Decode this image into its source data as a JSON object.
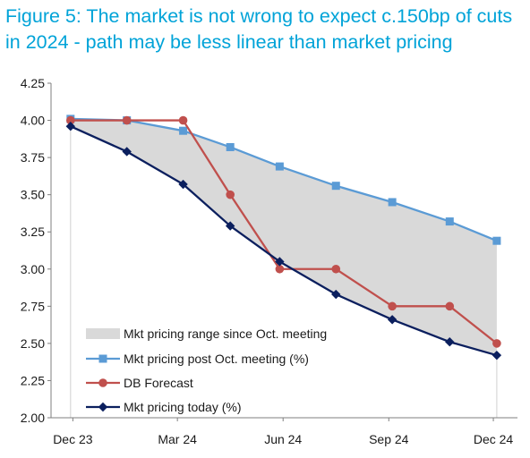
{
  "title": "Figure 5: The market is not wrong to expect c.150bp of cuts in 2024 - path may be less linear than market pricing",
  "colors": {
    "range_fill": "#d9d9d9",
    "post_oct": "#5b9bd5",
    "db_forecast": "#c0504d",
    "today": "#0b1f5e",
    "axis": "#7f7f7f"
  },
  "chart_data": {
    "type": "line",
    "title": "Figure 5: The market is not wrong to expect c.150bp of cuts in 2024 - path may be less linear than market pricing",
    "xlabel": "",
    "ylabel": "",
    "x_ticks": [
      "Dec 23",
      "Mar 24",
      "Jun 24",
      "Sep 24",
      "Dec 24"
    ],
    "ylim": [
      2.0,
      4.25
    ],
    "y_ticks": [
      "4.25",
      "4.00",
      "3.75",
      "3.50",
      "3.25",
      "3.00",
      "2.75",
      "2.50",
      "2.25",
      "2.00"
    ],
    "grid": false,
    "legend_position": "bottom-left",
    "series": [
      {
        "name": "Mkt pricing range since Oct. meeting",
        "kind": "area",
        "x": [
          "2023-12-13",
          "2024-01-31",
          "2024-03-20",
          "2024-04-30",
          "2024-06-12",
          "2024-07-31",
          "2024-09-18",
          "2024-11-07",
          "2024-12-18"
        ],
        "low": [
          3.96,
          3.79,
          3.57,
          3.29,
          3.05,
          2.83,
          2.66,
          2.51,
          2.42
        ],
        "high": [
          4.01,
          4.0,
          3.93,
          3.82,
          3.69,
          3.56,
          3.45,
          3.32,
          3.19
        ]
      },
      {
        "name": "Mkt pricing post Oct. meeting (%)",
        "kind": "line",
        "marker": "square",
        "x": [
          "2023-12-13",
          "2024-01-31",
          "2024-03-20",
          "2024-04-30",
          "2024-06-12",
          "2024-07-31",
          "2024-09-18",
          "2024-11-07",
          "2024-12-18"
        ],
        "values": [
          4.01,
          4.0,
          3.93,
          3.82,
          3.69,
          3.56,
          3.45,
          3.32,
          3.19
        ]
      },
      {
        "name": "DB Forecast",
        "kind": "line",
        "marker": "circle",
        "x": [
          "2023-12-13",
          "2024-01-31",
          "2024-03-20",
          "2024-04-30",
          "2024-06-12",
          "2024-07-31",
          "2024-09-18",
          "2024-11-07",
          "2024-12-18"
        ],
        "values": [
          4.0,
          4.0,
          4.0,
          3.5,
          3.0,
          3.0,
          2.75,
          2.75,
          2.5
        ]
      },
      {
        "name": "Mkt pricing today (%)",
        "kind": "line",
        "marker": "diamond",
        "x": [
          "2023-12-13",
          "2024-01-31",
          "2024-03-20",
          "2024-04-30",
          "2024-06-12",
          "2024-07-31",
          "2024-09-18",
          "2024-11-07",
          "2024-12-18"
        ],
        "values": [
          3.96,
          3.79,
          3.57,
          3.29,
          3.05,
          2.83,
          2.66,
          2.51,
          2.42
        ]
      }
    ]
  }
}
